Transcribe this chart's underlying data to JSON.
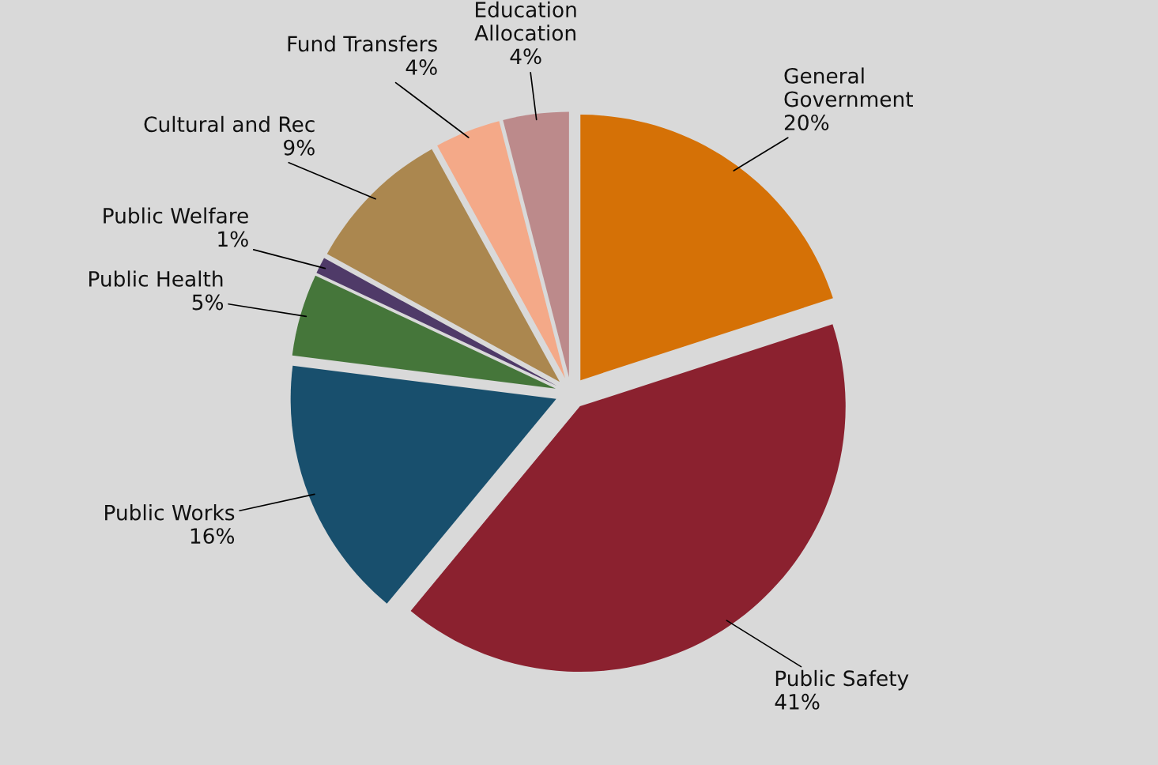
{
  "chart_data": {
    "type": "pie",
    "categories": [
      "General\nGovernment",
      "Public Safety",
      "Public Works",
      "Public Health",
      "Public Welfare",
      "Cultural and Rec",
      "Fund Transfers",
      "Education\nAllocation"
    ],
    "values": [
      20,
      41,
      16,
      5,
      1,
      9,
      4,
      4
    ],
    "value_labels": [
      "20%",
      "41%",
      "16%",
      "5%",
      "1%",
      "9%",
      "4%",
      "4%"
    ],
    "colors": [
      "#d57106",
      "#8b212f",
      "#184f6d",
      "#45763a",
      "#4f3a68",
      "#ab874f",
      "#f4a988",
      "#bc8a8b"
    ],
    "legend": false
  }
}
